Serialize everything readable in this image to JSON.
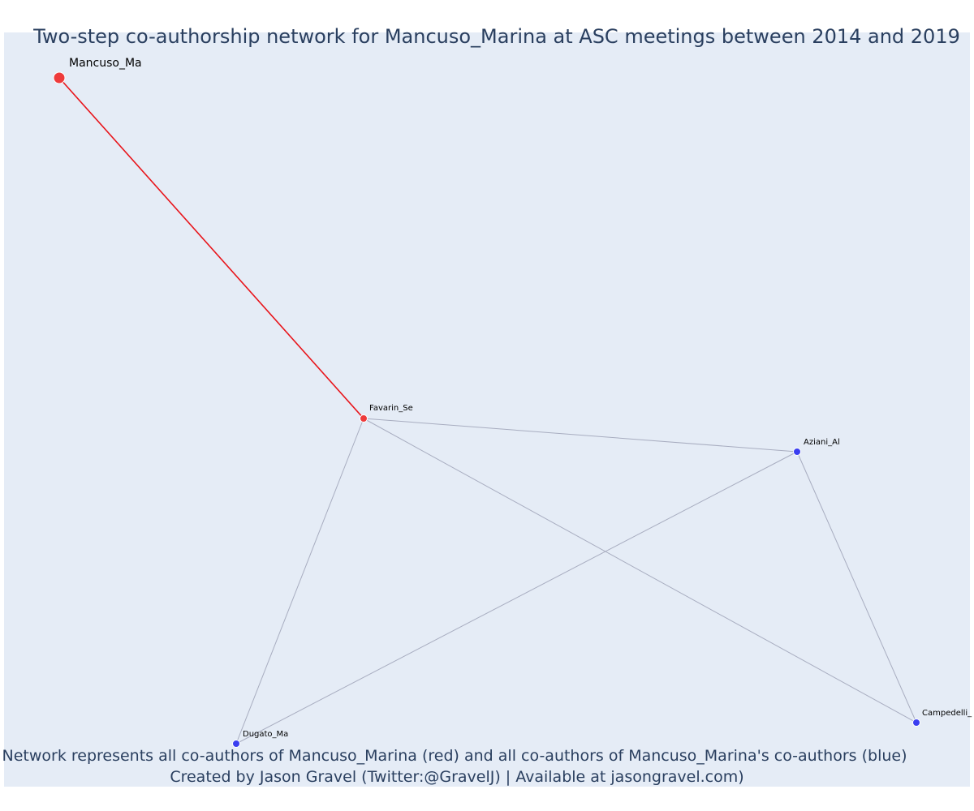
{
  "title": "Two-step co-authorship network for Mancuso_Marina at ASC meetings between 2014 and 2019",
  "nodes": [
    {
      "label": "Mancuso_Ma"
    },
    {
      "label": "Favarin_Se"
    },
    {
      "label": "Aziani_Al"
    },
    {
      "label": "Dugato_Ma"
    },
    {
      "label": "Campedelli_"
    }
  ],
  "footer": [
    "Network represents all co-authors of Mancuso_Marina (red) and all co-authors of Mancuso_Marina's co-authors (blue)",
    "Created by Jason Gravel (Twitter:@GravelJ) | Available at jasongravel.com)"
  ]
}
